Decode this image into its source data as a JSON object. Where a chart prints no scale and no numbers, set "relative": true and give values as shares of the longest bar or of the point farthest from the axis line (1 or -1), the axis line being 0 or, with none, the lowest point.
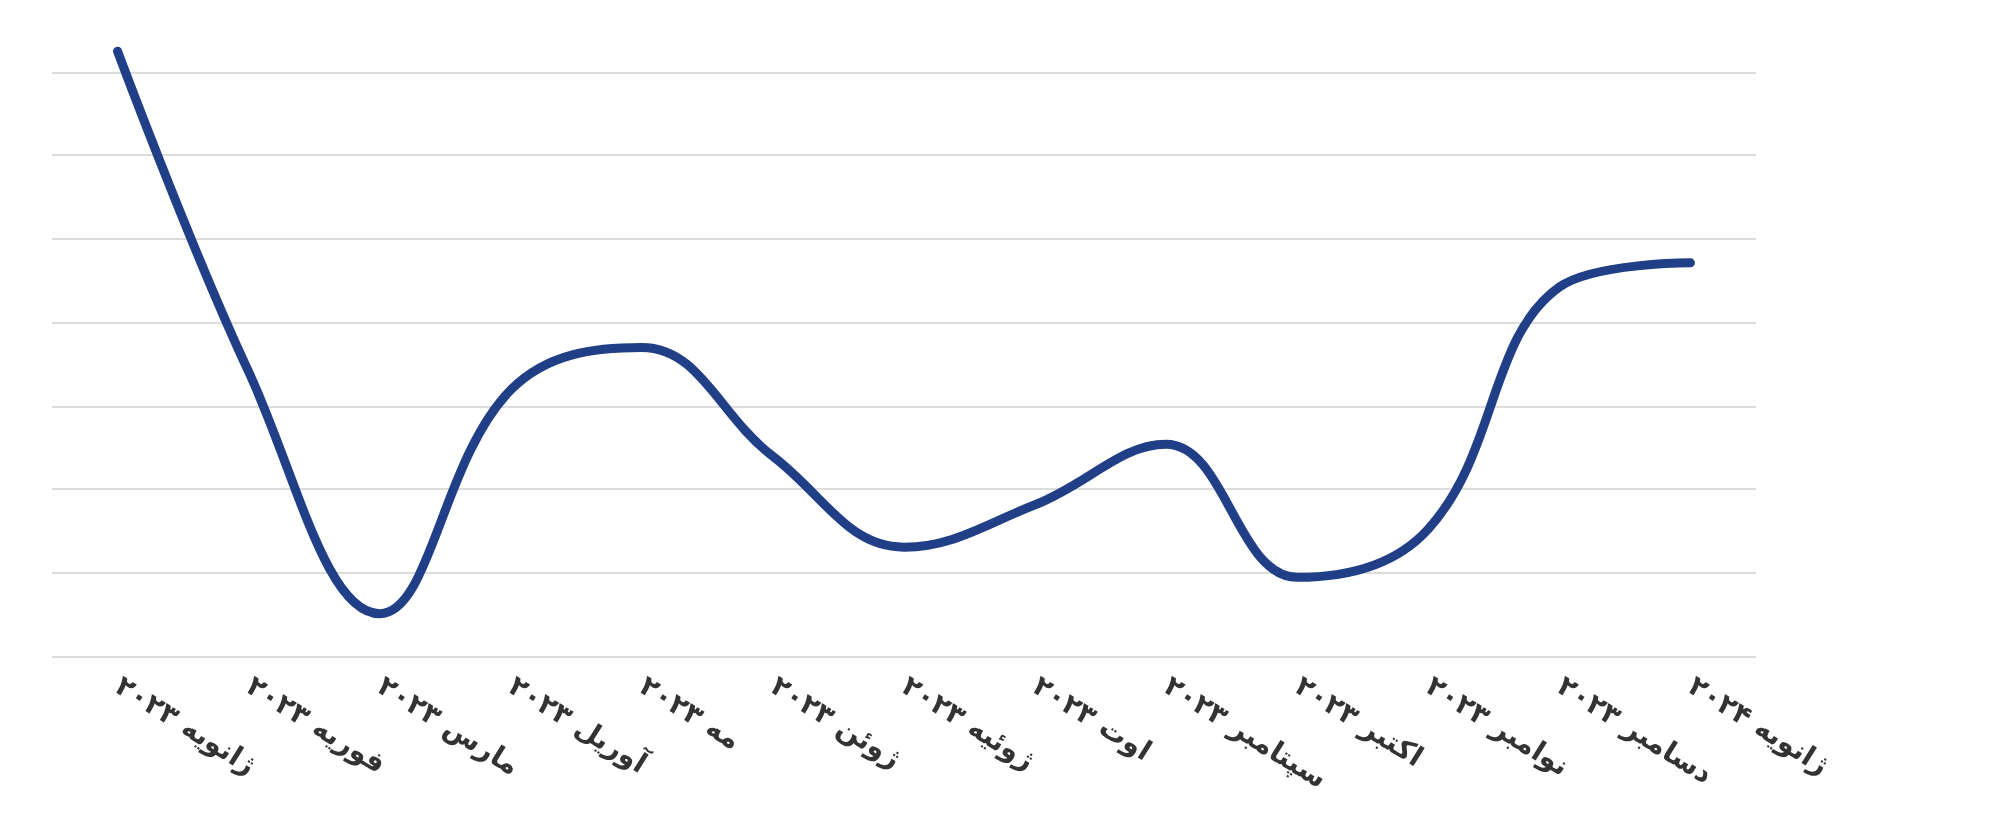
{
  "chart_data": {
    "type": "line",
    "relative": true,
    "grid": "y",
    "marker": "none",
    "line_style": "solid",
    "categories": [
      "ژانویه ۲۰۲۳",
      "فوریه ۲۰۲۳",
      "مارس ۲۰۲۳",
      "آوریل ۲۰۲۳",
      "مه ۲۰۲۳",
      "ژوئن ۲۰۲۳",
      "ژوئیه ۲۰۲۳",
      "اوت ۲۰۲۳",
      "سپتامبر ۲۰۲۳",
      "اکتبر ۲۰۲۳",
      "نوامبر ۲۰۲۳",
      "دسامبر ۲۰۲۳",
      "ژانویه ۲۰۲۴"
    ],
    "series": [
      {
        "color": "#213f86",
        "values": [
          1,
          0.47,
          0.07,
          0.44,
          0.51,
          0.33,
          0.18,
          0.25,
          0.35,
          0.13,
          0.21,
          0.61,
          0.65
        ]
      }
    ]
  }
}
